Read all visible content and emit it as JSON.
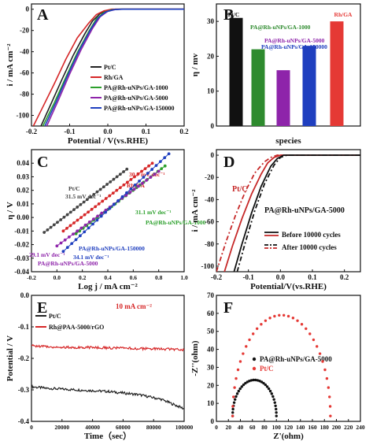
{
  "chart_data": [
    {
      "panel": "A",
      "type": "line",
      "xlabel": "Potential / V(vs.RHE)",
      "ylabel": "i / mA cm⁻²",
      "xlim": [
        -0.2,
        0.2
      ],
      "ylim": [
        -110,
        5
      ],
      "xticks": [
        -0.2,
        -0.1,
        0.0,
        0.1,
        0.2
      ],
      "xtick_labels": [
        "-0.2",
        "-0.1",
        "0.0",
        "0.1",
        "0.2"
      ],
      "yticks": [
        -100,
        -80,
        -60,
        -40,
        -20,
        0
      ],
      "ytick_labels": [
        "-100",
        "-80",
        "-60",
        "-40",
        "-20",
        "0"
      ],
      "legend_position": "bottom-right",
      "series": [
        {
          "name": "Pt/C",
          "color": "#222222",
          "points": [
            [
              -0.175,
              -110
            ],
            [
              -0.15,
              -90
            ],
            [
              -0.12,
              -66
            ],
            [
              -0.09,
              -43
            ],
            [
              -0.06,
              -23
            ],
            [
              -0.04,
              -11
            ],
            [
              -0.02,
              -4
            ],
            [
              0.0,
              -1
            ],
            [
              0.02,
              0
            ],
            [
              0.2,
              0
            ]
          ]
        },
        {
          "name": "Rh/GA",
          "color": "#d62728",
          "points": [
            [
              -0.195,
              -110
            ],
            [
              -0.17,
              -92
            ],
            [
              -0.14,
              -70
            ],
            [
              -0.11,
              -47
            ],
            [
              -0.08,
              -27
            ],
            [
              -0.05,
              -13
            ],
            [
              -0.03,
              -5
            ],
            [
              -0.01,
              -1.5
            ],
            [
              0.01,
              0
            ],
            [
              0.2,
              0
            ]
          ]
        },
        {
          "name": "PA@Rh-uNPs/GA-1000",
          "color": "#2ca02c",
          "points": [
            [
              -0.17,
              -110
            ],
            [
              -0.14,
              -88
            ],
            [
              -0.11,
              -64
            ],
            [
              -0.08,
              -41
            ],
            [
              -0.05,
              -21
            ],
            [
              -0.03,
              -9
            ],
            [
              -0.01,
              -3
            ],
            [
              0.01,
              -0.5
            ],
            [
              0.03,
              0
            ],
            [
              0.2,
              0
            ]
          ]
        },
        {
          "name": "PA@Rh-uNPs/GA-5000",
          "color": "#8e24aa",
          "points": [
            [
              -0.16,
              -110
            ],
            [
              -0.13,
              -86
            ],
            [
              -0.1,
              -61
            ],
            [
              -0.07,
              -38
            ],
            [
              -0.04,
              -18
            ],
            [
              -0.02,
              -7
            ],
            [
              0.0,
              -2
            ],
            [
              0.02,
              -0.3
            ],
            [
              0.04,
              0
            ],
            [
              0.2,
              0
            ]
          ]
        },
        {
          "name": "PA@Rh-uNPs/GA-150000",
          "color": "#1f3fbf",
          "points": [
            [
              -0.165,
              -110
            ],
            [
              -0.135,
              -87
            ],
            [
              -0.105,
              -62
            ],
            [
              -0.075,
              -39
            ],
            [
              -0.045,
              -19
            ],
            [
              -0.025,
              -8
            ],
            [
              -0.005,
              -2.5
            ],
            [
              0.015,
              -0.4
            ],
            [
              0.035,
              0
            ],
            [
              0.2,
              0
            ]
          ]
        }
      ]
    },
    {
      "panel": "B",
      "type": "bar",
      "xlabel": "species",
      "ylabel": "η / mv",
      "ylim": [
        0,
        35
      ],
      "yticks": [
        0,
        10,
        20,
        30
      ],
      "ytick_labels": [
        "0",
        "10",
        "20",
        "30"
      ],
      "categories": [
        "Pt/C",
        "PA@Rh-uNPs/GA-1000",
        "PA@Rh-uNPs/GA-5000",
        "PA@Rh-uNPs/GA-150000",
        "Rh/GA"
      ],
      "values": [
        31,
        22,
        16,
        23,
        30
      ],
      "colors": [
        "#111111",
        "#2e8b2e",
        "#8e24aa",
        "#1f3fbf",
        "#e53935"
      ]
    },
    {
      "panel": "C",
      "type": "scatter",
      "xlabel": "Log j / mA cm⁻²",
      "ylabel": "η / V",
      "xlim": [
        -0.2,
        1.0
      ],
      "ylim": [
        -0.04,
        0.05
      ],
      "xticks": [
        -0.2,
        0.0,
        0.2,
        0.4,
        0.6,
        0.8,
        1.0
      ],
      "xtick_labels": [
        "-0.2",
        "0.0",
        "0.2",
        "0.4",
        "0.6",
        "0.8",
        "1.0"
      ],
      "yticks": [
        -0.04,
        -0.03,
        -0.02,
        -0.01,
        0.0,
        0.01,
        0.02,
        0.03,
        0.04
      ],
      "ytick_labels": [
        "-0.04",
        "-0.03",
        "-0.02",
        "-0.01",
        "0.00",
        "0.01",
        "0.02",
        "0.03",
        "0.04"
      ],
      "series": [
        {
          "name": "Pt/C",
          "color": "#444444",
          "tafel": "31.5 mV dec⁻¹",
          "x_range": [
            -0.1,
            0.55
          ],
          "y_start": -0.011,
          "slope": 0.0717
        },
        {
          "name": "Rh/GA",
          "color": "#d62728",
          "tafel": "30.7 mV dec⁻¹",
          "x_range": [
            0.05,
            0.75
          ],
          "y_start": -0.01,
          "slope": 0.0714
        },
        {
          "name": "PA@Rh-uNPs/GA-1000",
          "color": "#2ca02c",
          "tafel": "31.1 mV dec⁻¹",
          "x_range": [
            0.15,
            0.85
          ],
          "y_start": -0.012,
          "slope": 0.0714
        },
        {
          "name": "PA@Rh-uNPs/GA-5000",
          "color": "#8e24aa",
          "tafel": "29.1 mV dec⁻¹",
          "x_range": [
            0.0,
            0.8
          ],
          "y_start": -0.021,
          "slope": 0.0688
        },
        {
          "name": "PA@Rh-uNPs/GA-150000",
          "color": "#1f3fbf",
          "tafel": "34.1 mV dec⁻¹",
          "x_range": [
            0.05,
            0.88
          ],
          "y_start": -0.025,
          "slope": 0.0867
        }
      ]
    },
    {
      "panel": "D",
      "type": "line",
      "xlabel": "Potential/V(vs.RHE)",
      "ylabel": "i / mA cm⁻²",
      "xlim": [
        -0.2,
        0.25
      ],
      "ylim": [
        -105,
        5
      ],
      "xticks": [
        -0.2,
        -0.1,
        0.0,
        0.1,
        0.2
      ],
      "xtick_labels": [
        "-0.2",
        "-0.1",
        "0.0",
        "0.1",
        "0.2"
      ],
      "yticks": [
        -100,
        -80,
        -60,
        -40,
        -20,
        0
      ],
      "ytick_labels": [
        "-100",
        "-80",
        "-60",
        "-40",
        "-20",
        "0"
      ],
      "labels": {
        "ptc": "Pt/C",
        "sample": "PA@Rh-uNPs/GA-5000"
      },
      "legend": {
        "before": "Before 10000 cycles",
        "after": "After 10000 cycles"
      },
      "series": [
        {
          "group": "Pt/C",
          "state": "before",
          "color": "#c62828",
          "dash": "",
          "points": [
            [
              -0.175,
              -105
            ],
            [
              -0.15,
              -82
            ],
            [
              -0.12,
              -57
            ],
            [
              -0.09,
              -35
            ],
            [
              -0.06,
              -17
            ],
            [
              -0.04,
              -7
            ],
            [
              -0.02,
              -2
            ],
            [
              0.0,
              0
            ],
            [
              0.25,
              0
            ]
          ]
        },
        {
          "group": "Pt/C",
          "state": "after",
          "color": "#c62828",
          "dash": "6 3 2 3",
          "points": [
            [
              -0.2,
              -105
            ],
            [
              -0.17,
              -78
            ],
            [
              -0.14,
              -54
            ],
            [
              -0.11,
              -33
            ],
            [
              -0.08,
              -16
            ],
            [
              -0.05,
              -6
            ],
            [
              -0.03,
              -2
            ],
            [
              -0.01,
              0
            ],
            [
              0.25,
              0
            ]
          ]
        },
        {
          "group": "PA@Rh-uNPs/GA-5000",
          "state": "before",
          "color": "#111111",
          "dash": "",
          "points": [
            [
              -0.145,
              -105
            ],
            [
              -0.12,
              -80
            ],
            [
              -0.09,
              -52
            ],
            [
              -0.06,
              -28
            ],
            [
              -0.03,
              -10
            ],
            [
              -0.01,
              -3
            ],
            [
              0.01,
              0
            ],
            [
              0.25,
              0
            ]
          ]
        },
        {
          "group": "PA@Rh-uNPs/GA-5000",
          "state": "after",
          "color": "#111111",
          "dash": "6 3 2 3",
          "points": [
            [
              -0.135,
              -105
            ],
            [
              -0.11,
              -79
            ],
            [
              -0.08,
              -50
            ],
            [
              -0.05,
              -26
            ],
            [
              -0.02,
              -9
            ],
            [
              0.0,
              -2
            ],
            [
              0.02,
              0
            ],
            [
              0.25,
              0
            ]
          ]
        }
      ]
    },
    {
      "panel": "E",
      "type": "line",
      "xlabel": "Time（sec）",
      "ylabel": "Potential / V",
      "annotation": "10 mA cm⁻²",
      "xlim": [
        0,
        100000
      ],
      "ylim": [
        -0.4,
        0.0
      ],
      "xticks": [
        0,
        20000,
        40000,
        60000,
        80000,
        100000
      ],
      "xtick_labels": [
        "0",
        "20000",
        "40000",
        "60000",
        "80000",
        "100000"
      ],
      "yticks": [
        -0.4,
        -0.3,
        -0.2,
        -0.1,
        0.0
      ],
      "ytick_labels": [
        "-0.4",
        "-0.3",
        "-0.2",
        "-0.1",
        "0.0"
      ],
      "series": [
        {
          "name": "Pt/C",
          "color": "#222222",
          "points": [
            [
              0,
              -0.29
            ],
            [
              10000,
              -0.295
            ],
            [
              30000,
              -0.3
            ],
            [
              50000,
              -0.305
            ],
            [
              70000,
              -0.315
            ],
            [
              85000,
              -0.33
            ],
            [
              100000,
              -0.36
            ]
          ]
        },
        {
          "name": "Rh@PAA-5000/rGO",
          "color": "#d62728",
          "points": [
            [
              0,
              -0.16
            ],
            [
              20000,
              -0.165
            ],
            [
              40000,
              -0.165
            ],
            [
              60000,
              -0.168
            ],
            [
              80000,
              -0.17
            ],
            [
              100000,
              -0.172
            ]
          ]
        }
      ]
    },
    {
      "panel": "F",
      "type": "scatter",
      "xlabel": "Z'(ohm)",
      "ylabel": "-Z''(ohm)",
      "xlim": [
        0,
        240
      ],
      "ylim": [
        0,
        70
      ],
      "xticks": [
        0,
        20,
        40,
        60,
        80,
        100,
        120,
        140,
        160,
        180,
        200,
        220,
        240
      ],
      "xtick_labels": [
        "0",
        "20",
        "40",
        "60",
        "80",
        "100",
        "120",
        "140",
        "160",
        "180",
        "200",
        "220",
        "240"
      ],
      "yticks": [
        0,
        10,
        20,
        30,
        40,
        50,
        60,
        70
      ],
      "ytick_labels": [
        "0",
        "10",
        "20",
        "30",
        "40",
        "50",
        "60",
        "70"
      ],
      "series": [
        {
          "name": "PA@Rh-uNPs/GA-5000",
          "color": "#111111",
          "x_range": [
            27,
            100
          ],
          "peak": 20
        },
        {
          "name": "Pt/C",
          "color": "#e53935",
          "x_range": [
            27,
            190
          ],
          "peak": 56
        }
      ]
    }
  ]
}
